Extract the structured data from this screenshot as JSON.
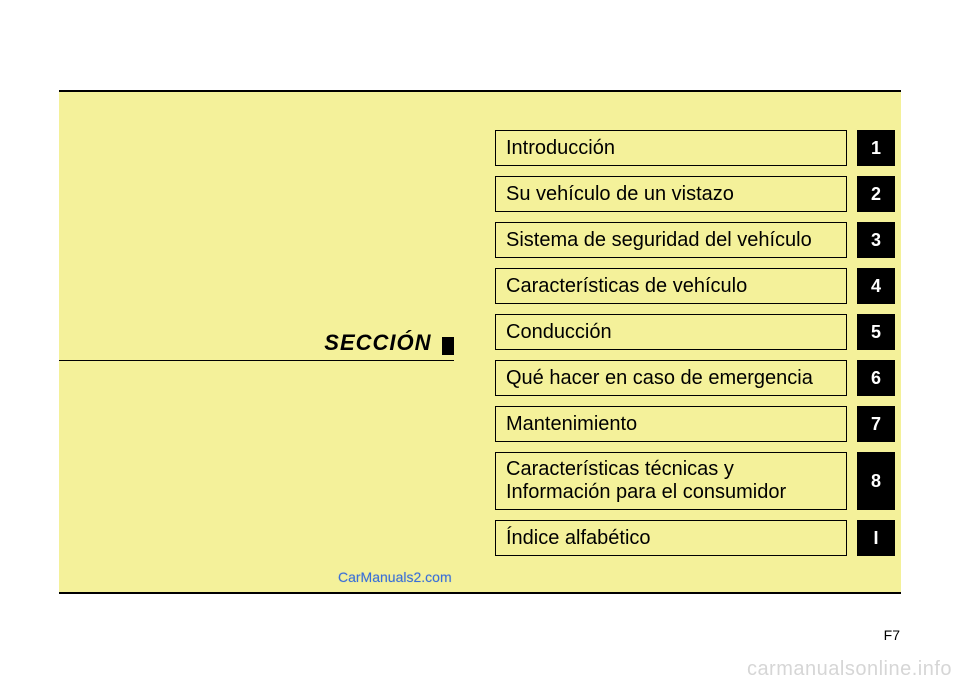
{
  "section_label": "SECCIÓN",
  "toc": [
    {
      "title": "Introducción",
      "badge": "1"
    },
    {
      "title": "Su vehículo de un vistazo",
      "badge": "2"
    },
    {
      "title": "Sistema de seguridad del vehículo",
      "badge": "3"
    },
    {
      "title": "Características de vehículo",
      "badge": "4"
    },
    {
      "title": "Conducción",
      "badge": "5"
    },
    {
      "title": "Qué hacer en caso de emergencia",
      "badge": "6"
    },
    {
      "title": "Mantenimiento",
      "badge": "7"
    },
    {
      "title": "Características técnicas y Información para el consumidor",
      "badge": "8"
    },
    {
      "title": "Índice alfabético",
      "badge": "I"
    }
  ],
  "watermark1": "CarManuals2.com",
  "page_number": "F7",
  "watermark2": "carmanualsonline.info",
  "colors": {
    "page_bg": "#ffffff",
    "panel_bg": "#f4f19a",
    "border": "#000000",
    "badge_bg": "#000000",
    "badge_text": "#ffffff",
    "watermark1": "#3a6fd8",
    "watermark2": "#d6d6d6"
  },
  "fontsizes": {
    "section_label": 22,
    "toc_title": 20,
    "toc_badge": 18,
    "page_number": 14,
    "watermark1": 14,
    "watermark2": 20
  }
}
